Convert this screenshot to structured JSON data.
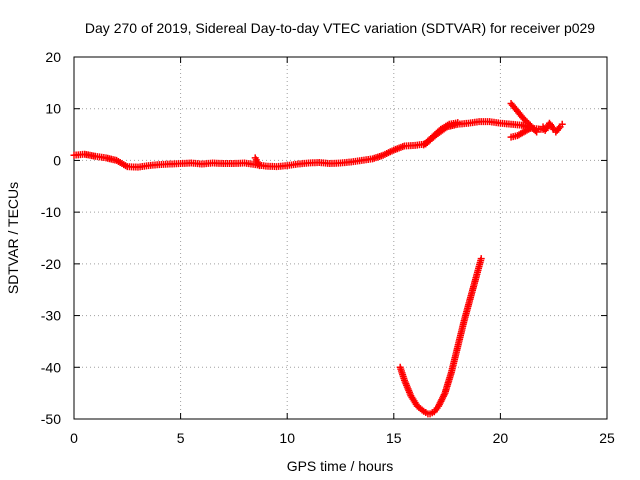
{
  "chart_data": {
    "type": "scatter",
    "title": "Day 270 of 2019, Sidereal Day-to-day VTEC variation (SDTVAR) for receiver p029",
    "xlabel": "GPS time / hours",
    "ylabel": "SDTVAR / TECUs",
    "xlim": [
      0,
      25
    ],
    "ylim": [
      -50,
      20
    ],
    "xticks": [
      "0",
      "5",
      "10",
      "15",
      "20",
      "25"
    ],
    "yticks": [
      "20",
      "10",
      "0",
      "-10",
      "-20",
      "-30",
      "-40",
      "-50"
    ],
    "grid": true,
    "marker": "plus",
    "series": [
      {
        "name": "main-trace",
        "color": "#ff0000",
        "x": [
          0.0,
          0.5,
          1.0,
          1.5,
          2.0,
          2.5,
          3.0,
          3.5,
          4.0,
          4.5,
          5.0,
          5.5,
          6.0,
          6.5,
          7.0,
          7.5,
          8.0,
          8.5,
          9.0,
          9.5,
          10.0,
          10.5,
          11.0,
          11.5,
          12.0,
          12.5,
          13.0,
          13.5,
          14.0,
          14.5,
          15.0,
          15.5,
          16.0,
          16.5,
          17.0,
          17.5,
          18.0,
          18.5,
          19.0,
          19.5,
          20.0,
          20.5,
          21.0,
          21.5,
          22.0
        ],
        "y": [
          1.0,
          1.2,
          0.8,
          0.5,
          0.0,
          -1.2,
          -1.3,
          -1.0,
          -0.8,
          -0.7,
          -0.6,
          -0.5,
          -0.7,
          -0.5,
          -0.6,
          -0.6,
          -0.5,
          -0.8,
          -1.1,
          -1.2,
          -1.0,
          -0.7,
          -0.5,
          -0.4,
          -0.6,
          -0.5,
          -0.3,
          0.0,
          0.3,
          1.0,
          2.0,
          2.8,
          2.9,
          3.2,
          5.0,
          6.5,
          7.0,
          7.2,
          7.5,
          7.5,
          7.2,
          7.0,
          6.8,
          6.2,
          6.0
        ]
      },
      {
        "name": "upper-branch",
        "color": "#ff0000",
        "x": [
          16.4,
          16.8,
          17.2,
          17.6,
          18.0
        ],
        "y": [
          3.0,
          4.5,
          6.0,
          7.0,
          7.3
        ]
      },
      {
        "name": "arrow-tip",
        "color": "#ff0000",
        "x": [
          20.5,
          20.8,
          21.1,
          21.4,
          21.7
        ],
        "y": [
          11.0,
          9.5,
          8.0,
          6.8,
          5.5
        ]
      },
      {
        "name": "lower-return",
        "color": "#ff0000",
        "x": [
          20.5,
          20.8,
          21.1,
          21.4
        ],
        "y": [
          4.5,
          4.8,
          5.5,
          6.2
        ]
      },
      {
        "name": "late-scatter",
        "color": "#ff0000",
        "x": [
          22.0,
          22.1,
          22.3,
          22.5,
          22.6,
          22.8,
          22.9
        ],
        "y": [
          6.5,
          5.8,
          7.2,
          6.0,
          5.5,
          6.5,
          7.0
        ]
      },
      {
        "name": "gap-markers",
        "color": "#ff0000",
        "x": [
          8.5,
          8.6,
          8.7
        ],
        "y": [
          0.5,
          -0.3,
          -1.0
        ]
      },
      {
        "name": "deep-dip",
        "color": "#ff0000",
        "x": [
          15.3,
          15.5,
          15.8,
          16.1,
          16.4,
          16.6,
          16.7,
          16.9,
          17.1,
          17.4,
          17.7,
          18.0,
          18.3,
          18.6,
          18.9,
          19.1
        ],
        "y": [
          -40.0,
          -42.5,
          -45.5,
          -47.5,
          -48.5,
          -49.0,
          -49.0,
          -48.6,
          -47.5,
          -45.0,
          -41.0,
          -36.0,
          -31.0,
          -26.5,
          -22.0,
          -19.0
        ]
      }
    ]
  }
}
